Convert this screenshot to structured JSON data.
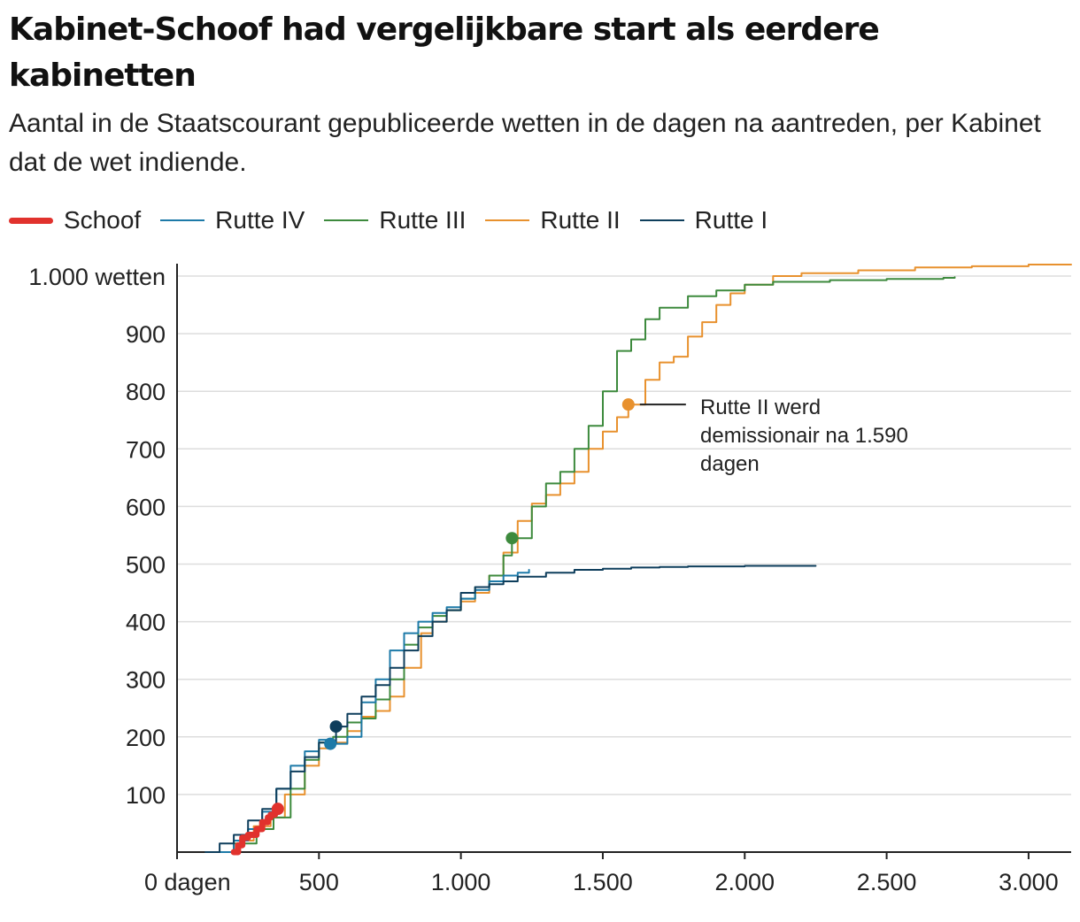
{
  "chart_data": {
    "type": "line",
    "title": "Kabinet-Schoof had vergelijkbare start als eerdere kabinetten",
    "subtitle": "Aantal in de Staatscourant gepubliceerde wetten in de dagen na aantreden, per Kabinet dat de wet indiende.",
    "xlim": [
      0,
      3150
    ],
    "ylim": [
      0,
      1000
    ],
    "x_ticks": [
      {
        "value": 0,
        "label": "0 dagen"
      },
      {
        "value": 500,
        "label": "500"
      },
      {
        "value": 1000,
        "label": "1.000"
      },
      {
        "value": 1500,
        "label": "1.500"
      },
      {
        "value": 2000,
        "label": "2.000"
      },
      {
        "value": 2500,
        "label": "2.500"
      },
      {
        "value": 3000,
        "label": "3.000"
      }
    ],
    "y_ticks": [
      {
        "value": 100,
        "label": "100"
      },
      {
        "value": 200,
        "label": "200"
      },
      {
        "value": 300,
        "label": "300"
      },
      {
        "value": 400,
        "label": "400"
      },
      {
        "value": 500,
        "label": "500"
      },
      {
        "value": 600,
        "label": "600"
      },
      {
        "value": 700,
        "label": "700"
      },
      {
        "value": 800,
        "label": "800"
      },
      {
        "value": 900,
        "label": "900"
      },
      {
        "value": 1000,
        "label": "1.000 wetten"
      }
    ],
    "grid": "horizontal",
    "legend_position": "top-left",
    "series": [
      {
        "name": "Rutte II",
        "color": "#e8912e",
        "x": [
          120,
          200,
          270,
          330,
          380,
          450,
          500,
          540,
          600,
          650,
          700,
          750,
          800,
          860,
          900,
          950,
          1000,
          1050,
          1100,
          1150,
          1200,
          1250,
          1300,
          1350,
          1400,
          1450,
          1500,
          1550,
          1590,
          1650,
          1700,
          1750,
          1800,
          1850,
          1900,
          1950,
          2000,
          2100,
          2200,
          2400,
          2600,
          2800,
          3000,
          3150
        ],
        "y": [
          0,
          20,
          45,
          60,
          100,
          150,
          180,
          190,
          210,
          235,
          245,
          270,
          320,
          380,
          400,
          420,
          435,
          450,
          480,
          520,
          575,
          605,
          620,
          640,
          660,
          700,
          730,
          755,
          777,
          820,
          850,
          860,
          895,
          920,
          950,
          970,
          985,
          1000,
          1005,
          1010,
          1015,
          1017,
          1020,
          1020
        ]
      },
      {
        "name": "Rutte III",
        "color": "#3d8a3d",
        "x": [
          120,
          200,
          280,
          340,
          400,
          450,
          500,
          550,
          600,
          650,
          700,
          750,
          800,
          850,
          900,
          950,
          1000,
          1050,
          1100,
          1150,
          1180,
          1250,
          1300,
          1350,
          1400,
          1450,
          1500,
          1550,
          1600,
          1650,
          1700,
          1800,
          1900,
          2000,
          2100,
          2300,
          2500,
          2700,
          2740
        ],
        "y": [
          0,
          15,
          40,
          60,
          110,
          160,
          190,
          200,
          225,
          232,
          265,
          300,
          360,
          390,
          410,
          420,
          440,
          460,
          480,
          515,
          545,
          600,
          640,
          660,
          700,
          740,
          800,
          870,
          890,
          925,
          945,
          965,
          975,
          985,
          990,
          993,
          995,
          997,
          998
        ]
      },
      {
        "name": "Rutte IV",
        "color": "#1d7aa8",
        "x": [
          130,
          200,
          250,
          300,
          350,
          400,
          450,
          500,
          540,
          600,
          650,
          700,
          750,
          800,
          850,
          900,
          950,
          1000,
          1050,
          1100,
          1150,
          1200,
          1240
        ],
        "y": [
          0,
          20,
          40,
          70,
          110,
          150,
          175,
          195,
          188,
          200,
          260,
          300,
          350,
          380,
          400,
          415,
          425,
          440,
          455,
          470,
          480,
          485,
          490
        ]
      },
      {
        "name": "Rutte I",
        "color": "#0e3e5c",
        "x": [
          100,
          150,
          200,
          250,
          300,
          350,
          400,
          450,
          500,
          560,
          600,
          650,
          700,
          750,
          800,
          850,
          900,
          950,
          1000,
          1050,
          1100,
          1150,
          1200,
          1300,
          1400,
          1500,
          1600,
          1700,
          1800,
          2000,
          2200,
          2250
        ],
        "y": [
          0,
          15,
          30,
          55,
          75,
          110,
          140,
          165,
          190,
          218,
          240,
          270,
          290,
          320,
          350,
          375,
          400,
          420,
          450,
          460,
          465,
          470,
          478,
          485,
          490,
          492,
          494,
          495,
          496,
          497,
          497,
          497
        ]
      },
      {
        "name": "Schoof",
        "color": "#e1322d",
        "x": [
          200,
          215,
          230,
          250,
          280,
          300,
          320,
          330,
          345,
          355
        ],
        "y": [
          0,
          12,
          25,
          30,
          40,
          52,
          60,
          65,
          70,
          75
        ]
      }
    ],
    "markers": [
      {
        "series": "Rutte II",
        "x": 1590,
        "y": 777
      },
      {
        "series": "Rutte III",
        "x": 1180,
        "y": 545
      },
      {
        "series": "Rutte IV",
        "x": 540,
        "y": 188
      },
      {
        "series": "Rutte I",
        "x": 560,
        "y": 218
      },
      {
        "series": "Schoof",
        "x": 355,
        "y": 75
      }
    ],
    "annotation": {
      "x": 1590,
      "y": 777,
      "lines": [
        "Rutte II werd",
        "demissionair na 1.590",
        "dagen"
      ]
    }
  },
  "legend": [
    {
      "label": "Schoof",
      "color": "#e1322d",
      "thick": true
    },
    {
      "label": "Rutte IV",
      "color": "#1d7aa8",
      "thick": false
    },
    {
      "label": "Rutte III",
      "color": "#3d8a3d",
      "thick": false
    },
    {
      "label": "Rutte II",
      "color": "#e8912e",
      "thick": false
    },
    {
      "label": "Rutte I",
      "color": "#0e3e5c",
      "thick": false
    }
  ]
}
